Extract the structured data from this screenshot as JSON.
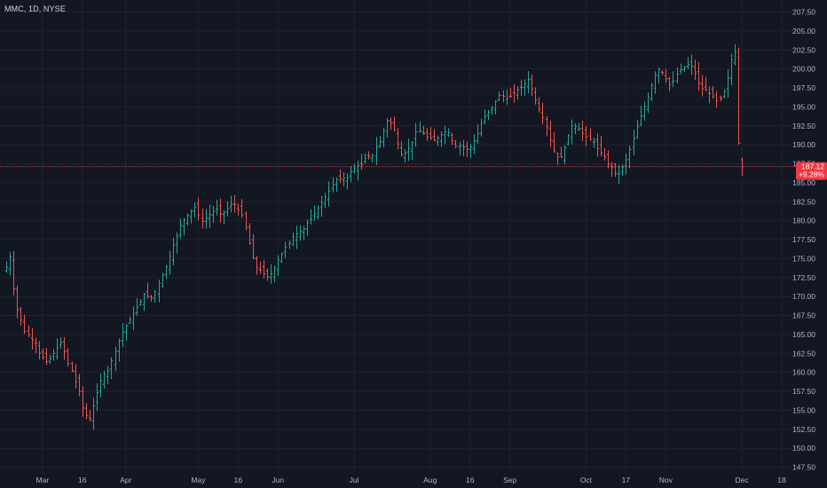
{
  "header": {
    "symbol": "MMC, 1D, NYSE"
  },
  "colors": {
    "background": "#131722",
    "grid": "#1f2330",
    "up": "#26a69a",
    "down": "#ef5350",
    "axis_text": "#b2b5be",
    "price_line": "#f23645"
  },
  "chart_data": {
    "type": "ohlc",
    "xlabels": [
      {
        "label": "Mar",
        "bar": 10
      },
      {
        "label": "16",
        "bar": 21
      },
      {
        "label": "Apr",
        "bar": 33
      },
      {
        "label": "May",
        "bar": 53
      },
      {
        "label": "16",
        "bar": 64
      },
      {
        "label": "Jun",
        "bar": 75
      },
      {
        "label": "Jul",
        "bar": 96
      },
      {
        "label": "Aug",
        "bar": 117
      },
      {
        "label": "16",
        "bar": 128
      },
      {
        "label": "Sep",
        "bar": 139
      },
      {
        "label": "Oct",
        "bar": 160
      },
      {
        "label": "17",
        "bar": 171
      },
      {
        "label": "Nov",
        "bar": 182
      },
      {
        "label": "Dec",
        "bar": 203
      },
      {
        "label": "18",
        "bar": 214
      }
    ],
    "yticks": [
      "207.50",
      "205.00",
      "202.50",
      "200.00",
      "197.50",
      "195.00",
      "192.50",
      "190.00",
      "187.50",
      "185.00",
      "182.50",
      "180.00",
      "177.50",
      "175.00",
      "172.50",
      "170.00",
      "167.50",
      "165.00",
      "162.50",
      "160.00",
      "157.50",
      "155.00",
      "152.50",
      "150.00",
      "147.50"
    ],
    "ylim": [
      146.0,
      210.0
    ],
    "last_price": {
      "value": 187.12,
      "label": "187.12",
      "change": "+9.28%"
    },
    "closes": [
      173.8,
      175.2,
      171.0,
      168.2,
      166.9,
      165.4,
      165.0,
      164.3,
      163.8,
      162.5,
      162.0,
      161.4,
      161.8,
      162.5,
      163.2,
      163.9,
      162.7,
      161.2,
      160.2,
      158.8,
      157.5,
      155.3,
      154.3,
      153.8,
      155.6,
      157.3,
      158.9,
      159.7,
      160.2,
      161.5,
      162.8,
      164.2,
      165.3,
      166.1,
      166.9,
      167.7,
      168.6,
      169.3,
      170.3,
      170.0,
      169.8,
      170.6,
      171.7,
      172.8,
      173.9,
      175.3,
      176.7,
      177.9,
      179.4,
      180.1,
      180.7,
      181.3,
      181.8,
      180.7,
      179.9,
      180.3,
      180.8,
      181.2,
      181.5,
      180.9,
      181.1,
      181.6,
      182.2,
      182.1,
      181.4,
      180.7,
      179.1,
      177.0,
      175.1,
      173.8,
      173.5,
      173.0,
      172.6,
      173.0,
      173.7,
      174.8,
      175.6,
      176.5,
      177.1,
      177.8,
      178.3,
      178.6,
      178.9,
      179.7,
      180.2,
      180.9,
      181.6,
      182.4,
      183.1,
      183.9,
      184.7,
      185.4,
      185.5,
      185.6,
      185.6,
      186.4,
      186.9,
      187.3,
      187.4,
      188.2,
      188.5,
      188.6,
      189.7,
      190.4,
      191.9,
      193.1,
      192.8,
      192.0,
      190.1,
      188.7,
      188.9,
      189.5,
      190.3,
      191.7,
      191.8,
      191.5,
      191.0,
      190.9,
      190.6,
      190.9,
      191.3,
      191.7,
      191.6,
      190.5,
      189.8,
      189.9,
      189.7,
      189.4,
      189.7,
      190.5,
      191.5,
      192.8,
      193.7,
      194.3,
      194.9,
      195.7,
      196.5,
      196.4,
      196.2,
      196.4,
      196.8,
      197.2,
      197.6,
      198.0,
      198.6,
      197.3,
      195.9,
      194.7,
      193.6,
      192.4,
      190.6,
      189.2,
      188.4,
      188.4,
      189.6,
      191.2,
      192.5,
      192.4,
      192.1,
      191.5,
      191.0,
      190.7,
      190.4,
      189.5,
      188.9,
      188.4,
      187.5,
      187.0,
      186.3,
      186.2,
      187.0,
      188.0,
      189.4,
      190.8,
      192.4,
      193.8,
      195.0,
      196.3,
      197.8,
      199.2,
      199.9,
      199.5,
      198.7,
      197.9,
      198.4,
      199.3,
      199.9,
      200.2,
      200.6,
      200.4,
      199.4,
      198.1,
      197.4,
      197.2,
      196.8,
      196.3,
      195.8,
      196.1,
      197.0,
      198.8,
      201.2,
      202.2,
      190.2,
      187.1
    ],
    "gaps": [
      214
    ]
  }
}
